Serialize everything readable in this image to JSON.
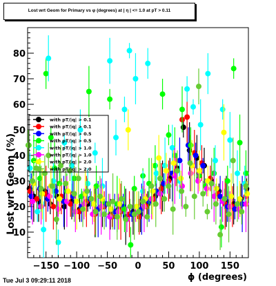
{
  "title": "Lost wrt Geom for Primary vs φ (degrees) at | η | <= 1.0 at pT > 0.11",
  "footer": {
    "timestamp": "Tue Jul  3 09:29:11 2018"
  },
  "chart_data": {
    "type": "scatter",
    "title": "Lost wrt Geom for Primary vs φ (degrees) at | η | <= 1.0 at pT > 0.11",
    "xlabel": "ϕ (degrees)",
    "ylabel": "Lost  wrt Geom (%)",
    "xlim": [
      -180,
      180
    ],
    "ylim": [
      0,
      90
    ],
    "xticks": [
      -150,
      -100,
      -50,
      0,
      50,
      100,
      150
    ],
    "yticks": [
      10,
      20,
      30,
      40,
      50,
      60,
      70,
      80
    ],
    "xtick_labels": [
      "−150",
      "−100",
      "−50",
      "0",
      "50",
      "100",
      "150"
    ],
    "ytick_labels": [
      "10",
      "20",
      "30",
      "40",
      "50",
      "60",
      "70",
      "80"
    ],
    "legend_position": "top-left",
    "series": [
      {
        "name": "with pT/|q| > 0.1",
        "color": "#000000",
        "marker": "circle",
        "points": [
          [
            -177,
            27
          ],
          [
            -170,
            24
          ],
          [
            -162,
            22
          ],
          [
            -152,
            26
          ],
          [
            -143,
            21
          ],
          [
            -132,
            24
          ],
          [
            -120,
            20
          ],
          [
            -108,
            22
          ],
          [
            -95,
            19
          ],
          [
            -82,
            21
          ],
          [
            -70,
            18
          ],
          [
            -58,
            20
          ],
          [
            -45,
            17
          ],
          [
            -32,
            19
          ],
          [
            -20,
            16
          ],
          [
            -8,
            18
          ],
          [
            4,
            17
          ],
          [
            16,
            21
          ],
          [
            28,
            24
          ],
          [
            40,
            28
          ],
          [
            52,
            31
          ],
          [
            64,
            35
          ],
          [
            74,
            51
          ],
          [
            84,
            42
          ],
          [
            96,
            39
          ],
          [
            108,
            36
          ],
          [
            120,
            30
          ],
          [
            132,
            26
          ],
          [
            144,
            22
          ],
          [
            156,
            21
          ],
          [
            168,
            23
          ],
          [
            177,
            27
          ]
        ]
      },
      {
        "name": "with pT/|q| > 0.1",
        "color": "#ff0000",
        "marker": "circle",
        "points": [
          [
            -176,
            26
          ],
          [
            -165,
            23
          ],
          [
            -150,
            25
          ],
          [
            -138,
            20
          ],
          [
            -125,
            24
          ],
          [
            -110,
            21
          ],
          [
            -96,
            18
          ],
          [
            -84,
            22
          ],
          [
            -70,
            17
          ],
          [
            -55,
            20
          ],
          [
            -42,
            16
          ],
          [
            -28,
            18
          ],
          [
            -14,
            17
          ],
          [
            2,
            16
          ],
          [
            14,
            20
          ],
          [
            26,
            23
          ],
          [
            38,
            27
          ],
          [
            50,
            30
          ],
          [
            62,
            34
          ],
          [
            72,
            54
          ],
          [
            80,
            55
          ],
          [
            92,
            41
          ],
          [
            104,
            37
          ],
          [
            118,
            31
          ],
          [
            130,
            25
          ],
          [
            142,
            21
          ],
          [
            154,
            20
          ],
          [
            166,
            22
          ],
          [
            176,
            24
          ]
        ]
      },
      {
        "name": "with pT/|q| > 0.5",
        "color": "#0000ff",
        "marker": "circle",
        "points": [
          [
            -174,
            24
          ],
          [
            -160,
            27
          ],
          [
            -147,
            23
          ],
          [
            -134,
            26
          ],
          [
            -121,
            22
          ],
          [
            -106,
            24
          ],
          [
            -92,
            20
          ],
          [
            -78,
            23
          ],
          [
            -65,
            19
          ],
          [
            -52,
            21
          ],
          [
            -38,
            18
          ],
          [
            -24,
            20
          ],
          [
            -10,
            17
          ],
          [
            6,
            19
          ],
          [
            18,
            22
          ],
          [
            30,
            26
          ],
          [
            42,
            29
          ],
          [
            56,
            33
          ],
          [
            68,
            38
          ],
          [
            82,
            44
          ],
          [
            94,
            40
          ],
          [
            106,
            36
          ],
          [
            120,
            29
          ],
          [
            134,
            24
          ],
          [
            146,
            20
          ],
          [
            158,
            19
          ],
          [
            170,
            21
          ]
        ]
      },
      {
        "name": "with pT/|q| > 0.5",
        "color": "#00ff00",
        "marker": "circle",
        "points": [
          [
            -178,
            44
          ],
          [
            -170,
            38
          ],
          [
            -160,
            31
          ],
          [
            -150,
            72
          ],
          [
            -142,
            47
          ],
          [
            -136,
            35
          ],
          [
            -128,
            29
          ],
          [
            -116,
            26
          ],
          [
            -104,
            31
          ],
          [
            -92,
            24
          ],
          [
            -80,
            65
          ],
          [
            -68,
            28
          ],
          [
            -58,
            22
          ],
          [
            -46,
            62
          ],
          [
            -34,
            21
          ],
          [
            -22,
            19
          ],
          [
            -12,
            5
          ],
          [
            -6,
            27
          ],
          [
            8,
            32
          ],
          [
            18,
            29
          ],
          [
            28,
            36
          ],
          [
            40,
            64
          ],
          [
            50,
            48
          ],
          [
            60,
            40
          ],
          [
            72,
            58
          ],
          [
            86,
            44
          ],
          [
            100,
            32
          ],
          [
            110,
            28
          ],
          [
            124,
            33
          ],
          [
            136,
            12
          ],
          [
            146,
            30
          ],
          [
            156,
            74
          ],
          [
            166,
            45
          ],
          [
            176,
            33
          ]
        ]
      },
      {
        "name": "with pT/|q| > 1.0",
        "color": "#00ffff",
        "marker": "circle",
        "points": [
          [
            -176,
            35
          ],
          [
            -164,
            18
          ],
          [
            -154,
            11
          ],
          [
            -146,
            78
          ],
          [
            -138,
            30
          ],
          [
            -130,
            6
          ],
          [
            -120,
            45
          ],
          [
            -108,
            36
          ],
          [
            -94,
            50
          ],
          [
            -82,
            29
          ],
          [
            -70,
            41
          ],
          [
            -58,
            28
          ],
          [
            -46,
            77
          ],
          [
            -36,
            47
          ],
          [
            -22,
            58
          ],
          [
            -14,
            81
          ],
          [
            -4,
            70
          ],
          [
            8,
            26
          ],
          [
            16,
            76
          ],
          [
            30,
            33
          ],
          [
            44,
            36
          ],
          [
            56,
            43
          ],
          [
            68,
            30
          ],
          [
            80,
            66
          ],
          [
            90,
            59
          ],
          [
            102,
            52
          ],
          [
            114,
            72
          ],
          [
            126,
            38
          ],
          [
            138,
            58
          ],
          [
            150,
            46
          ],
          [
            162,
            33
          ],
          [
            174,
            29
          ]
        ]
      },
      {
        "name": "with pT/|q| > 1.0",
        "color": "#ff00ff",
        "marker": "circle",
        "points": [
          [
            -172,
            22
          ],
          [
            -158,
            20
          ],
          [
            -144,
            24
          ],
          [
            -130,
            19
          ],
          [
            -116,
            22
          ],
          [
            -102,
            18
          ],
          [
            -88,
            21
          ],
          [
            -74,
            17
          ],
          [
            -60,
            20
          ],
          [
            -46,
            16
          ],
          [
            -32,
            18
          ],
          [
            -18,
            15
          ],
          [
            -4,
            17
          ],
          [
            10,
            20
          ],
          [
            22,
            23
          ],
          [
            36,
            25
          ],
          [
            48,
            29
          ],
          [
            60,
            32
          ],
          [
            72,
            28
          ],
          [
            86,
            33
          ],
          [
            98,
            30
          ],
          [
            112,
            27
          ],
          [
            124,
            24
          ],
          [
            138,
            22
          ],
          [
            150,
            20
          ],
          [
            164,
            19
          ],
          [
            176,
            21
          ]
        ]
      },
      {
        "name": "with pT/|q| > 2.0",
        "color": "#ffff00",
        "marker": "circle",
        "points": [
          [
            -170,
            29
          ],
          [
            -156,
            25
          ],
          [
            -142,
            28
          ],
          [
            -128,
            23
          ],
          [
            -114,
            26
          ],
          [
            -100,
            22
          ],
          [
            -86,
            25
          ],
          [
            -72,
            21
          ],
          [
            -58,
            23
          ],
          [
            -44,
            19
          ],
          [
            -30,
            21
          ],
          [
            -16,
            50
          ],
          [
            -2,
            20
          ],
          [
            12,
            23
          ],
          [
            24,
            26
          ],
          [
            34,
            39
          ],
          [
            46,
            34
          ],
          [
            58,
            37
          ],
          [
            70,
            31
          ],
          [
            88,
            36
          ],
          [
            100,
            34
          ],
          [
            114,
            30
          ],
          [
            128,
            27
          ],
          [
            140,
            49
          ],
          [
            152,
            24
          ],
          [
            166,
            23
          ],
          [
            178,
            25
          ]
        ]
      },
      {
        "name": "with pT/|q| > 2.0",
        "color": "#66cc33",
        "marker": "circle",
        "points": [
          [
            -179,
            44
          ],
          [
            -172,
            30
          ],
          [
            -166,
            35
          ],
          [
            -158,
            27
          ],
          [
            -152,
            33
          ],
          [
            -146,
            40
          ],
          [
            -140,
            28
          ],
          [
            -133,
            15
          ],
          [
            -126,
            36
          ],
          [
            -118,
            29
          ],
          [
            -111,
            34
          ],
          [
            -104,
            25
          ],
          [
            -97,
            31
          ],
          [
            -90,
            19
          ],
          [
            -83,
            26
          ],
          [
            -76,
            23
          ],
          [
            -69,
            18
          ],
          [
            -62,
            24
          ],
          [
            -55,
            17
          ],
          [
            -48,
            21
          ],
          [
            -41,
            22
          ],
          [
            -34,
            16
          ],
          [
            -27,
            23
          ],
          [
            -20,
            15
          ],
          [
            -13,
            20
          ],
          [
            -6,
            17
          ],
          [
            1,
            18
          ],
          [
            8,
            22
          ],
          [
            15,
            16
          ],
          [
            22,
            28
          ],
          [
            29,
            21
          ],
          [
            36,
            31
          ],
          [
            43,
            23
          ],
          [
            50,
            28
          ],
          [
            57,
            19
          ],
          [
            64,
            34
          ],
          [
            71,
            26
          ],
          [
            78,
            20
          ],
          [
            85,
            37
          ],
          [
            92,
            24
          ],
          [
            99,
            67
          ],
          [
            106,
            25
          ],
          [
            113,
            18
          ],
          [
            120,
            29
          ],
          [
            127,
            21
          ],
          [
            134,
            9
          ],
          [
            141,
            23
          ],
          [
            148,
            17
          ],
          [
            155,
            38
          ],
          [
            162,
            21
          ],
          [
            169,
            18
          ],
          [
            176,
            28
          ]
        ]
      }
    ]
  }
}
